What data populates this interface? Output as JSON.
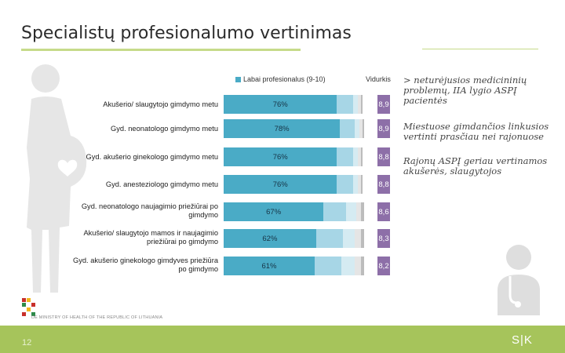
{
  "slide": {
    "title": "Specialistų profesionalumo vertinimas",
    "page_number": "12",
    "brand": "S|K"
  },
  "chart": {
    "legend_main": "Labai profesionalus (9-10)",
    "legend_avg": "Vidurkis",
    "rows": [
      {
        "label": "Akušerio/ slaugytojo gimdymo metu",
        "main": 76,
        "main_text": "76%",
        "avg": "8,9",
        "segs": [
          11,
          3,
          2,
          1
        ]
      },
      {
        "label": "Gyd. neonatologo gimdymo metu",
        "main": 78,
        "main_text": "78%",
        "avg": "8,9",
        "segs": [
          10,
          3,
          2,
          1
        ]
      },
      {
        "label": "Gyd. akušerio ginekologo gimdymo metu",
        "main": 76,
        "main_text": "76%",
        "avg": "8,8",
        "segs": [
          11,
          3,
          2,
          1
        ]
      },
      {
        "label": "Gyd. anesteziologo gimdymo metu",
        "main": 76,
        "main_text": "76%",
        "avg": "8,8",
        "segs": [
          11,
          3,
          2,
          1
        ]
      },
      {
        "label": "Gyd. neonatologo naujagimio priežiūrai po gimdymo",
        "main": 67,
        "main_text": "67%",
        "avg": "8,6",
        "segs": [
          15,
          7,
          3,
          2
        ]
      },
      {
        "label": "Akušerio/ slaugytojo mamos ir naujagimio priežiūrai po gimdymo",
        "main": 62,
        "main_text": "62%",
        "avg": "8,3",
        "segs": [
          18,
          8,
          4,
          2
        ]
      },
      {
        "label": "Gyd. akušerio ginekologo gimdyves priežiūra po gimdymo",
        "main": 61,
        "main_text": "61%",
        "avg": "8,2",
        "segs": [
          18,
          9,
          4,
          2
        ]
      }
    ]
  },
  "insights": [
    "> neturėjusios medicininių problemų, IIA lygio ASPĮ pacientės",
    "Miestuose gimdančios linkusios vertinti prasčiau nei rajonuose",
    "Rajonų ASPĮ geriau vertinamos akušerės, slaugytojos"
  ],
  "logo_text": "DE MINISTRY OF HEALTH OF THE REPUBLIC OF LITHUANIA",
  "colors": {
    "accent": "#a6c45b",
    "bar_main": "#4aabc6",
    "avg_box": "#8d6fa8"
  }
}
